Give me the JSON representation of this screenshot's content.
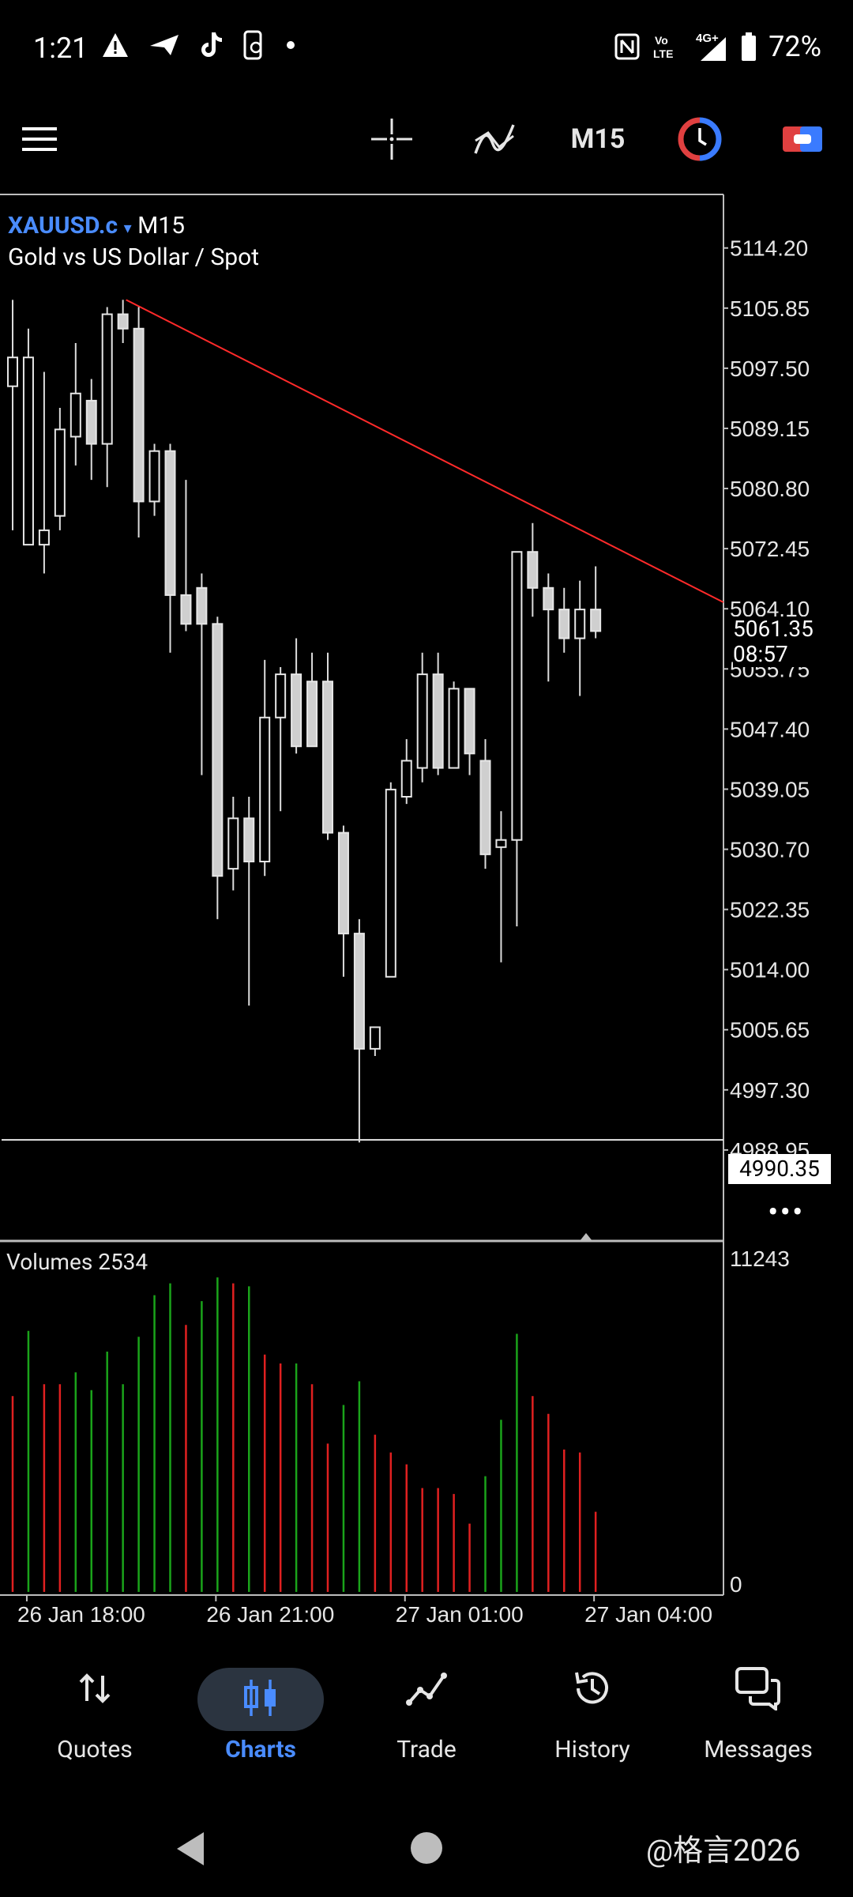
{
  "status_bar": {
    "time": "1:21",
    "battery": "72%",
    "left_icons": [
      "warning-icon",
      "send-icon",
      "tiktok-icon",
      "phone-screen-icon",
      "dot-icon"
    ],
    "right_icons": [
      "nfc-icon",
      "volte-icon",
      "signal-4g-icon",
      "battery-icon"
    ],
    "volte_text": "Vo LTE",
    "network_text": "4G+"
  },
  "toolbar": {
    "menu_icon": "hamburger-menu-icon",
    "crosshair_icon": "crosshair-icon",
    "indicators_icon": "indicators-icon",
    "timeframe": "M15",
    "clock_icon": "trade-clock-icon",
    "toggle_icon": "one-click-trading-icon"
  },
  "chart": {
    "symbol": "XAUUSD.c",
    "symbol_arrow": "▾",
    "timeframe": "M15",
    "description": "Gold vs US Dollar / Spot",
    "current_price": "5061.35",
    "countdown": "08:57",
    "horizontal_line_price": "4990.35",
    "volumes_label": "Volumes 2534",
    "more_icon": "more-dots-icon"
  },
  "chart_data": {
    "type": "candlestick",
    "price_axis_ticks": [
      "5114.20",
      "5105.85",
      "5097.50",
      "5089.15",
      "5080.80",
      "5072.45",
      "5064.10",
      "5055.75",
      "5047.40",
      "5039.05",
      "5030.70",
      "5022.35",
      "5014.00",
      "5005.65",
      "4997.30",
      "4988.95"
    ],
    "price_range": [
      4984.0,
      5119.0
    ],
    "volume_axis_ticks": [
      "11243",
      "0"
    ],
    "volume_max": 11243,
    "time_labels": [
      "26 Jan 18:00",
      "26 Jan 21:00",
      "27 Jan 01:00",
      "27 Jan 04:00"
    ],
    "time_label_index": [
      1,
      13,
      25,
      37
    ],
    "candles": [
      {
        "o": 5095,
        "h": 5107,
        "l": 5075,
        "c": 5099
      },
      {
        "o": 5073,
        "h": 5103,
        "l": 5073,
        "c": 5099
      },
      {
        "o": 5073,
        "h": 5097,
        "l": 5069,
        "c": 5075
      },
      {
        "o": 5077,
        "h": 5092,
        "l": 5075,
        "c": 5089
      },
      {
        "o": 5088,
        "h": 5101,
        "l": 5084,
        "c": 5094
      },
      {
        "o": 5093,
        "h": 5096,
        "l": 5082,
        "c": 5087
      },
      {
        "o": 5087,
        "h": 5106,
        "l": 5081,
        "c": 5105
      },
      {
        "o": 5105,
        "h": 5107,
        "l": 5101,
        "c": 5103
      },
      {
        "o": 5103,
        "h": 5106,
        "l": 5074,
        "c": 5079
      },
      {
        "o": 5079,
        "h": 5087,
        "l": 5077,
        "c": 5086
      },
      {
        "o": 5086,
        "h": 5087,
        "l": 5058,
        "c": 5066
      },
      {
        "o": 5066,
        "h": 5082,
        "l": 5061,
        "c": 5062
      },
      {
        "o": 5067,
        "h": 5069,
        "l": 5041,
        "c": 5062
      },
      {
        "o": 5062,
        "h": 5063,
        "l": 5021,
        "c": 5027
      },
      {
        "o": 5028,
        "h": 5038,
        "l": 5025,
        "c": 5035
      },
      {
        "o": 5035,
        "h": 5038,
        "l": 5009,
        "c": 5029
      },
      {
        "o": 5029,
        "h": 5057,
        "l": 5027,
        "c": 5049
      },
      {
        "o": 5049,
        "h": 5056,
        "l": 5036,
        "c": 5055
      },
      {
        "o": 5055,
        "h": 5060,
        "l": 5044,
        "c": 5045
      },
      {
        "o": 5054,
        "h": 5058,
        "l": 5046,
        "c": 5045
      },
      {
        "o": 5054,
        "h": 5058,
        "l": 5032,
        "c": 5033
      },
      {
        "o": 5033,
        "h": 5034,
        "l": 5013,
        "c": 5019
      },
      {
        "o": 5019,
        "h": 5021,
        "l": 4990,
        "c": 5003
      },
      {
        "o": 5003,
        "h": 5006,
        "l": 5002,
        "c": 5006
      },
      {
        "o": 5013,
        "h": 5040,
        "l": 5013,
        "c": 5039
      },
      {
        "o": 5038,
        "h": 5046,
        "l": 5037,
        "c": 5043
      },
      {
        "o": 5042,
        "h": 5058,
        "l": 5040,
        "c": 5055
      },
      {
        "o": 5055,
        "h": 5058,
        "l": 5041,
        "c": 5042
      },
      {
        "o": 5042,
        "h": 5054,
        "l": 5043,
        "c": 5053
      },
      {
        "o": 5053,
        "h": 5052,
        "l": 5041,
        "c": 5044
      },
      {
        "o": 5043,
        "h": 5046,
        "l": 5028,
        "c": 5030
      },
      {
        "o": 5031,
        "h": 5036,
        "l": 5015,
        "c": 5032
      },
      {
        "o": 5032,
        "h": 5072,
        "l": 5020,
        "c": 5072
      },
      {
        "o": 5072,
        "h": 5076,
        "l": 5063,
        "c": 5067
      },
      {
        "o": 5067,
        "h": 5069,
        "l": 5054,
        "c": 5064
      },
      {
        "o": 5064,
        "h": 5067,
        "l": 5058,
        "c": 5060
      },
      {
        "o": 5060,
        "h": 5068,
        "l": 5052,
        "c": 5064
      },
      {
        "o": 5064,
        "h": 5070,
        "l": 5060,
        "c": 5061
      }
    ],
    "volumes": [
      {
        "v": 6600,
        "dir": "down"
      },
      {
        "v": 8800,
        "dir": "up"
      },
      {
        "v": 7000,
        "dir": "down"
      },
      {
        "v": 7000,
        "dir": "down"
      },
      {
        "v": 7400,
        "dir": "up"
      },
      {
        "v": 6800,
        "dir": "up"
      },
      {
        "v": 8100,
        "dir": "up"
      },
      {
        "v": 7000,
        "dir": "up"
      },
      {
        "v": 8600,
        "dir": "up"
      },
      {
        "v": 10000,
        "dir": "up"
      },
      {
        "v": 10400,
        "dir": "up"
      },
      {
        "v": 9000,
        "dir": "down"
      },
      {
        "v": 9800,
        "dir": "up"
      },
      {
        "v": 10600,
        "dir": "up"
      },
      {
        "v": 10400,
        "dir": "down"
      },
      {
        "v": 10300,
        "dir": "up"
      },
      {
        "v": 8000,
        "dir": "down"
      },
      {
        "v": 7700,
        "dir": "down"
      },
      {
        "v": 7700,
        "dir": "up"
      },
      {
        "v": 7000,
        "dir": "down"
      },
      {
        "v": 5000,
        "dir": "down"
      },
      {
        "v": 6300,
        "dir": "up"
      },
      {
        "v": 7100,
        "dir": "up"
      },
      {
        "v": 5300,
        "dir": "down"
      },
      {
        "v": 4700,
        "dir": "down"
      },
      {
        "v": 4300,
        "dir": "down"
      },
      {
        "v": 3500,
        "dir": "down"
      },
      {
        "v": 3500,
        "dir": "down"
      },
      {
        "v": 3300,
        "dir": "down"
      },
      {
        "v": 2300,
        "dir": "down"
      },
      {
        "v": 3900,
        "dir": "up"
      },
      {
        "v": 5800,
        "dir": "up"
      },
      {
        "v": 8700,
        "dir": "up"
      },
      {
        "v": 6600,
        "dir": "down"
      },
      {
        "v": 6000,
        "dir": "down"
      },
      {
        "v": 4800,
        "dir": "down"
      },
      {
        "v": 4700,
        "dir": "down"
      },
      {
        "v": 2700,
        "dir": "down"
      }
    ],
    "trendline": {
      "from_candle": 7,
      "from_price": 5107,
      "to_price_at_right": 5065
    },
    "colors": {
      "up_candle": "#ffffff",
      "down_candle": "#cfcfcf",
      "vol_up": "#1aa31a",
      "vol_down": "#e02020",
      "trendline": "#ff2a2a",
      "axis": "#bdbdbd"
    }
  },
  "bottom_nav": {
    "items": [
      {
        "label": "Quotes",
        "icon": "quotes-icon",
        "active": false
      },
      {
        "label": "Charts",
        "icon": "charts-icon",
        "active": true
      },
      {
        "label": "Trade",
        "icon": "trade-icon",
        "active": false
      },
      {
        "label": "History",
        "icon": "history-icon",
        "active": false
      },
      {
        "label": "Messages",
        "icon": "messages-icon",
        "active": false
      }
    ]
  },
  "watermark": "@格言2026"
}
